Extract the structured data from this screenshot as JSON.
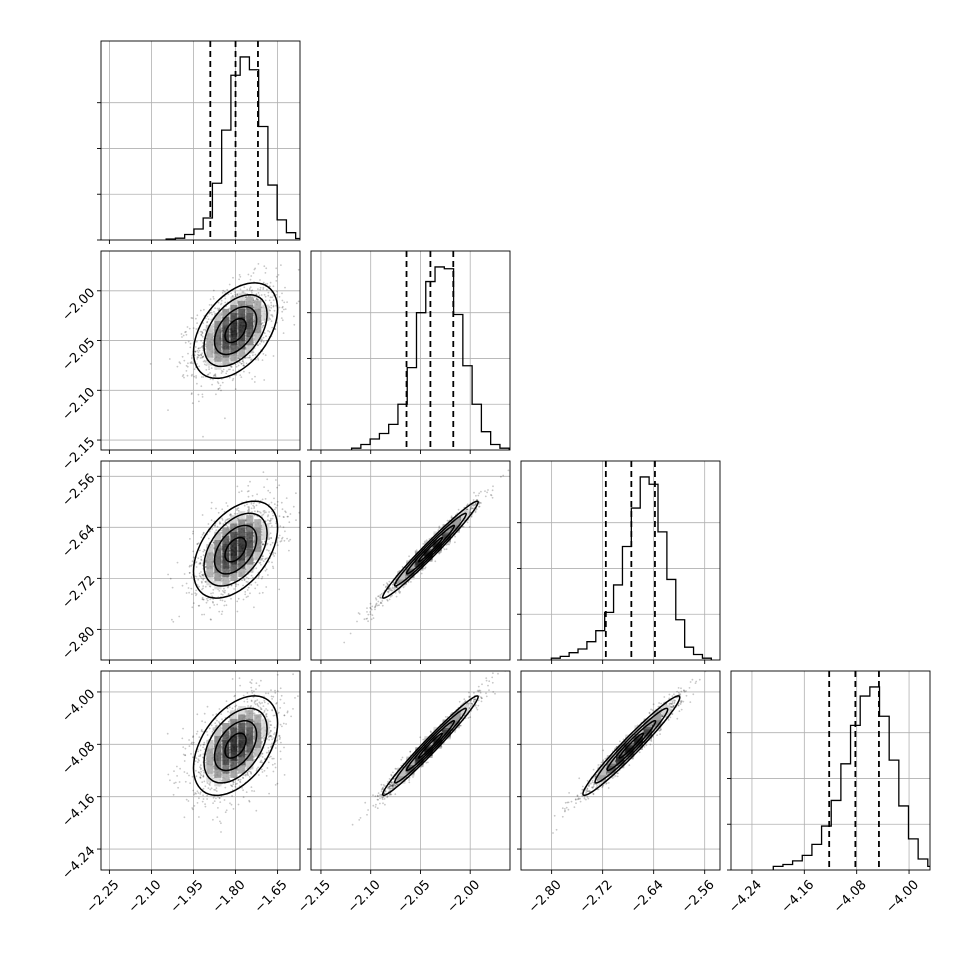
{
  "chart_data": {
    "type": "scatter",
    "title": "",
    "n_params": 4,
    "variables": [
      {
        "index": 0,
        "range": [
          -2.28,
          -1.57
        ],
        "ticks": [
          -2.25,
          -2.1,
          -1.95,
          -1.8,
          -1.65
        ],
        "tick_labels": [
          "−2.25",
          "−2.10",
          "−1.95",
          "−1.80",
          "−1.65"
        ],
        "quantiles": [
          -1.89,
          -1.8,
          -1.72
        ],
        "center": -1.8,
        "sigma": 0.075,
        "hist_counts": [
          0.005,
          0.01,
          0.03,
          0.06,
          0.12,
          0.31,
          0.6,
          0.9,
          1.0,
          0.93,
          0.62,
          0.3,
          0.11,
          0.04,
          0.008
        ]
      },
      {
        "index": 1,
        "range": [
          -2.16,
          -1.96
        ],
        "ticks": [
          -2.15,
          -2.1,
          -2.05,
          -2.0
        ],
        "tick_labels": [
          "−2.15",
          "−2.10",
          "−2.05",
          "−2.00"
        ],
        "quantiles": [
          -2.064,
          -2.04,
          -2.017
        ],
        "center": -2.04,
        "sigma": 0.024,
        "hist_counts": [
          0.01,
          0.03,
          0.06,
          0.09,
          0.14,
          0.25,
          0.45,
          0.75,
          0.92,
          1.0,
          0.99,
          0.74,
          0.46,
          0.25,
          0.1,
          0.03,
          0.01
        ]
      },
      {
        "index": 2,
        "range": [
          -2.848,
          -2.536
        ],
        "ticks": [
          -2.8,
          -2.72,
          -2.64,
          -2.56
        ],
        "tick_labels": [
          "−2.80",
          "−2.72",
          "−2.64",
          "−2.56"
        ],
        "quantiles": [
          -2.715,
          -2.675,
          -2.638
        ],
        "center": -2.675,
        "sigma": 0.038,
        "hist_counts": [
          0.01,
          0.02,
          0.04,
          0.06,
          0.1,
          0.16,
          0.26,
          0.41,
          0.62,
          0.83,
          1.0,
          0.96,
          0.7,
          0.44,
          0.22,
          0.07,
          0.03,
          0.01
        ]
      },
      {
        "index": 3,
        "range": [
          -4.272,
          -3.968
        ],
        "ticks": [
          -4.24,
          -4.16,
          -4.08,
          -4.0
        ],
        "tick_labels": [
          "−4.24",
          "−4.16",
          "−4.08",
          "−4.00"
        ],
        "quantiles": [
          -4.122,
          -4.082,
          -4.046
        ],
        "center": -4.082,
        "sigma": 0.038,
        "hist_counts": [
          0.02,
          0.03,
          0.05,
          0.08,
          0.14,
          0.24,
          0.38,
          0.58,
          0.79,
          0.95,
          1.0,
          0.84,
          0.6,
          0.35,
          0.17,
          0.06,
          0.02
        ]
      }
    ],
    "correlations": {
      "1-0": 0.45,
      "2-0": 0.45,
      "2-1": 0.98,
      "3-0": 0.45,
      "3-1": 0.98,
      "3-2": 0.97
    },
    "samples_per_panel": 1400,
    "contour_levels_sigma": [
      0.5,
      1.0,
      1.5,
      2.0
    ],
    "grid": true,
    "line_style_quantiles": "dashed",
    "colors": {
      "points": "#000000",
      "lines": "#000000",
      "grid": "#b0b0b0"
    }
  }
}
